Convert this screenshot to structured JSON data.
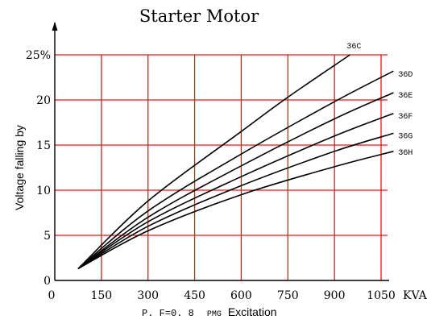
{
  "chart_data": {
    "type": "line",
    "title": "Starter Motor",
    "ylabel": "Voltage falling by",
    "xlabel": {
      "prefix": "P. F=0. 8",
      "small": "PMG",
      "suffix": "Excitation"
    },
    "x_unit_label": "KVA",
    "xlim": [
      0,
      1050
    ],
    "ylim": [
      0,
      25
    ],
    "x_ticks": [
      {
        "value": 0,
        "label": "0"
      },
      {
        "value": 150,
        "label": "150"
      },
      {
        "value": 300,
        "label": "300"
      },
      {
        "value": 450,
        "label": "450"
      },
      {
        "value": 600,
        "label": "600"
      },
      {
        "value": 750,
        "label": "750"
      },
      {
        "value": 900,
        "label": "900"
      },
      {
        "value": 1050,
        "label": "1050"
      }
    ],
    "y_ticks": [
      {
        "value": 0,
        "label": "0"
      },
      {
        "value": 5,
        "label": "5"
      },
      {
        "value": 10,
        "label": "10"
      },
      {
        "value": 15,
        "label": "15"
      },
      {
        "value": 20,
        "label": "20"
      },
      {
        "value": 25,
        "label": "25%"
      }
    ],
    "grid": true,
    "grid_color": "#e8161a",
    "line_color": "#000000",
    "series": [
      {
        "name": "36C",
        "x": [
          75,
          300,
          600,
          750,
          950
        ],
        "y": [
          1.3,
          8.8,
          16.5,
          20.3,
          25.0
        ]
      },
      {
        "name": "36D",
        "x": [
          75,
          300,
          600,
          900,
          1090
        ],
        "y": [
          1.3,
          7.7,
          14.0,
          19.8,
          23.2
        ]
      },
      {
        "name": "36E",
        "x": [
          75,
          300,
          600,
          900,
          1090
        ],
        "y": [
          1.3,
          7.0,
          12.7,
          17.9,
          20.8
        ]
      },
      {
        "name": "36F",
        "x": [
          75,
          300,
          600,
          900,
          1090
        ],
        "y": [
          1.3,
          6.5,
          11.5,
          16.0,
          18.5
        ]
      },
      {
        "name": "36G",
        "x": [
          75,
          300,
          600,
          900,
          1090
        ],
        "y": [
          1.3,
          6.0,
          10.5,
          14.3,
          16.3
        ]
      },
      {
        "name": "36H",
        "x": [
          75,
          300,
          600,
          900,
          1090
        ],
        "y": [
          1.3,
          5.5,
          9.5,
          12.6,
          14.3
        ]
      }
    ]
  }
}
